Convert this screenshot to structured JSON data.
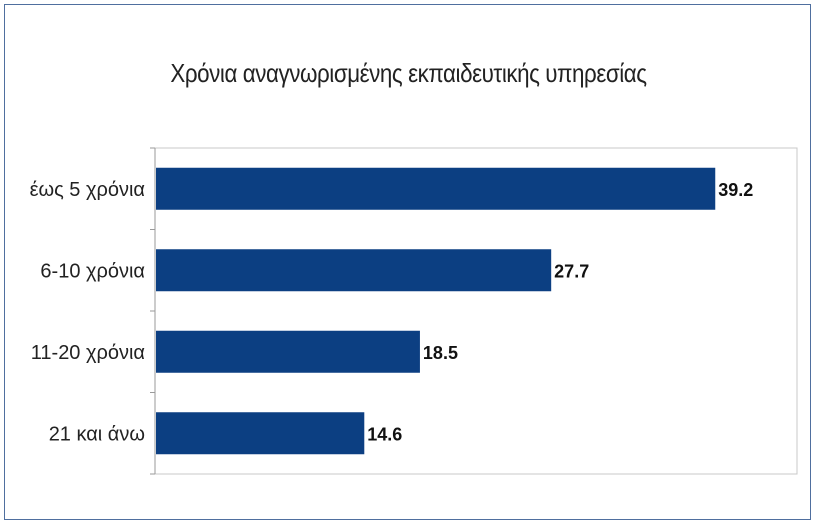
{
  "chart_data": {
    "type": "bar",
    "orientation": "horizontal",
    "title": "Χρόνια αναγνωρισμένης εκπαιδευτικής υπηρεσίας",
    "categories": [
      "έως 5 χρόνια",
      "6-10 χρόνια",
      "11-20 χρόνια",
      "21 και άνω"
    ],
    "values": [
      39.2,
      27.7,
      18.5,
      14.6
    ],
    "xlim": [
      0,
      45
    ],
    "grid": false,
    "legend": "none",
    "bar_color": "#0c3f82"
  }
}
